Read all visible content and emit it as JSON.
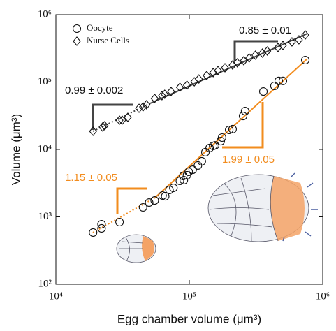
{
  "chart_data": {
    "type": "scatter",
    "xlabel": "Egg chamber volume (μm³)",
    "ylabel": "Volume (μm³)",
    "xscale": "log",
    "yscale": "log",
    "xlim": [
      10000,
      1000000
    ],
    "ylim": [
      100,
      1000000
    ],
    "xticks": [
      {
        "value": 10000,
        "label": "10⁴"
      },
      {
        "value": 100000,
        "label": "10⁵"
      },
      {
        "value": 1000000,
        "label": "10⁶"
      }
    ],
    "yticks": [
      {
        "value": 100,
        "label": "10²"
      },
      {
        "value": 1000,
        "label": "10³"
      },
      {
        "value": 10000,
        "label": "10⁴"
      },
      {
        "value": 100000,
        "label": "10⁵"
      },
      {
        "value": 1000000,
        "label": "10⁶"
      }
    ],
    "legend": "upper left",
    "annotations": [
      "0.85 ± 0.01",
      "0.99 ± 0.002",
      "1.99 ± 0.05",
      "1.15 ± 0.05"
    ],
    "series": [
      {
        "name": "Oocyte",
        "marker": "circle",
        "color": "#111111",
        "x": [
          19000,
          22000,
          22000,
          30000,
          45000,
          50000,
          55000,
          63000,
          66000,
          71000,
          76000,
          85000,
          91000,
          90000,
          99000,
          96000,
          106000,
          116000,
          124000,
          132000,
          142000,
          151000,
          156000,
          176000,
          172000,
          199000,
          211000,
          253000,
          262000,
          359000,
          435000,
          468000,
          503000,
          740000
        ],
        "values": [
          585,
          778,
          675,
          836,
          1380,
          1630,
          1750,
          2070,
          2020,
          2510,
          2690,
          3420,
          3500,
          4040,
          4660,
          4140,
          5000,
          5780,
          6670,
          9100,
          10500,
          11300,
          11500,
          15000,
          13300,
          19500,
          20000,
          31400,
          37100,
          72400,
          87700,
          104000,
          104000,
          212000
        ]
      },
      {
        "name": "Nurse Cells",
        "marker": "diamond",
        "color": "#111111",
        "x": [
          19000,
          22400,
          23200,
          30000,
          31400,
          34600,
          42000,
          45000,
          47800,
          55000,
          62400,
          65400,
          73000,
          85000,
          96000,
          109000,
          118000,
          135000,
          151000,
          164000,
          185000,
          211000,
          229000,
          256000,
          281000,
          313000,
          353000,
          384000,
          462000,
          503000,
          588000,
          663000,
          740000
        ],
        "values": [
          18600,
          21500,
          22500,
          27200,
          27200,
          30000,
          40800,
          42900,
          46000,
          57100,
          62800,
          65900,
          72400,
          83600,
          89800,
          101000,
          111000,
          125000,
          138000,
          148000,
          163000,
          179000,
          193000,
          207000,
          228000,
          251000,
          269000,
          289000,
          326000,
          350000,
          394000,
          424000,
          500000
        ]
      }
    ]
  }
}
